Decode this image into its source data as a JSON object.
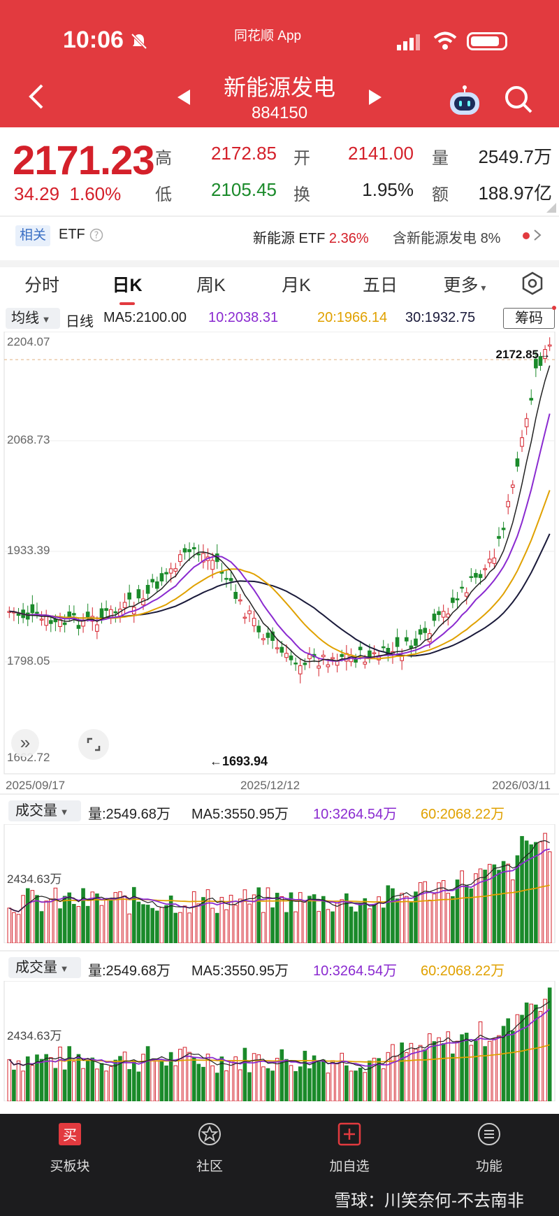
{
  "status": {
    "time": "10:06",
    "app": "同花顺 App"
  },
  "header": {
    "title": "新能源发电",
    "code": "884150"
  },
  "quote": {
    "price": "2171.23",
    "change": "34.29",
    "change_pct": "1.60%",
    "high_label": "高",
    "high": "2172.85",
    "open_label": "开",
    "open": "2141.00",
    "vol_label": "量",
    "vol": "2549.7万",
    "low_label": "低",
    "low": "2105.45",
    "turn_label": "换",
    "turn": "1.95%",
    "amt_label": "额",
    "amt": "188.97亿"
  },
  "etf": {
    "tag": "相关",
    "label": "ETF",
    "name": "新能源 ETF",
    "pct": "2.36%",
    "contain": "含新能源发电",
    "contain_pct": "8%"
  },
  "tabs": [
    "分时",
    "日K",
    "周K",
    "月K",
    "五日",
    "更多"
  ],
  "ma": {
    "select": "均线",
    "period": "日线",
    "ma5": "MA5:2100.00",
    "ma10": "10:2038.31",
    "ma20": "20:1966.14",
    "ma30": "30:1932.75",
    "btn": "筹码"
  },
  "kline": {
    "y_labels": [
      "2204.07",
      "2068.73",
      "1933.39",
      "1798.05",
      "1662.72"
    ],
    "high_mark": "2172.85→",
    "low_mark": "←1693.94",
    "dates": [
      "2025/09/17",
      "2025/12/12",
      "2026/03/11"
    ]
  },
  "vol1": {
    "select": "成交量",
    "vol": "量:2549.68万",
    "ma5": "MA5:3550.95万",
    "ma10": "10:3264.54万",
    "ma60": "60:2068.22万",
    "y": "2434.63万"
  },
  "vol2": {
    "select": "成交量",
    "vol": "量:2549.68万",
    "ma5": "MA5:3550.95万",
    "ma10": "10:3264.54万",
    "ma60": "60:2068.22万",
    "y": "2434.63万"
  },
  "nav": [
    "买板块",
    "社区",
    "加自选",
    "功能"
  ],
  "watermark": "雪球：川笑奈何-不去南非",
  "colors": {
    "up": "#d4202a",
    "down": "#1a8a2a",
    "brand": "#e23a3f"
  }
}
